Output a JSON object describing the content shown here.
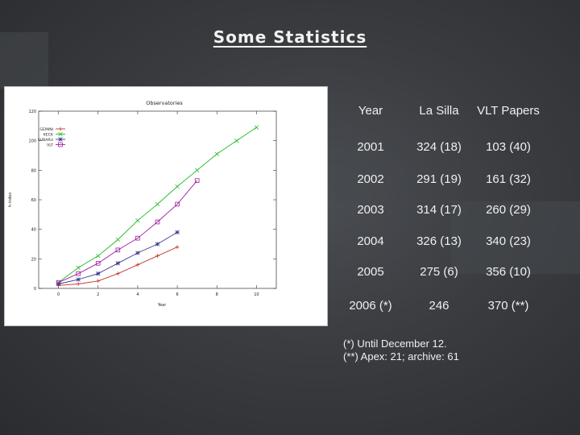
{
  "slide": {
    "title": "Some Statistics"
  },
  "chart_data": {
    "type": "line",
    "title": "Observatories",
    "xlabel": "Year",
    "ylabel": "h-index",
    "xlim": [
      -1,
      11
    ],
    "ylim": [
      0,
      120
    ],
    "xticks": [
      0,
      2,
      4,
      6,
      8,
      10
    ],
    "yticks": [
      0,
      20,
      40,
      60,
      80,
      100,
      120
    ],
    "legend_position": "top-left",
    "series": [
      {
        "name": "GEMINI",
        "color": "#c0392b",
        "marker": "plus",
        "x": [
          0,
          1,
          2,
          3,
          4,
          5,
          6
        ],
        "y": [
          2,
          3,
          5,
          10,
          16,
          22,
          28
        ]
      },
      {
        "name": "KECK",
        "color": "#22bb22",
        "marker": "x",
        "x": [
          0,
          1,
          2,
          3,
          4,
          5,
          6,
          7,
          8,
          9,
          10
        ],
        "y": [
          4,
          14,
          22,
          33,
          46,
          57,
          69,
          80,
          91,
          100,
          109
        ]
      },
      {
        "name": "SUBARU",
        "color": "#3a3a8c",
        "marker": "star",
        "x": [
          0,
          1,
          2,
          3,
          4,
          5,
          6
        ],
        "y": [
          3,
          6,
          10,
          17,
          24,
          30,
          38
        ]
      },
      {
        "name": "VLT",
        "color": "#a020a0",
        "marker": "square",
        "x": [
          0,
          1,
          2,
          3,
          4,
          5,
          6,
          7
        ],
        "y": [
          4,
          10,
          17,
          26,
          34,
          45,
          57,
          73
        ]
      }
    ]
  },
  "table": {
    "headers": [
      "Year",
      "La Silla",
      "VLT Papers"
    ],
    "rows": [
      [
        "2001",
        "324  (18)",
        "103 (40)"
      ],
      [
        "2002",
        "291 (19)",
        "161 (32)"
      ],
      [
        "2003",
        "314 (17)",
        "260 (29)"
      ],
      [
        "2004",
        "326 (13)",
        "340 (23)"
      ],
      [
        "2005",
        "275 (6)",
        "356 (10)"
      ],
      [
        "2006 (*)",
        "246",
        "370  (**)"
      ]
    ]
  },
  "footnotes": [
    "(*) Until December 12.",
    "(**) Apex: 21; archive: 61"
  ]
}
